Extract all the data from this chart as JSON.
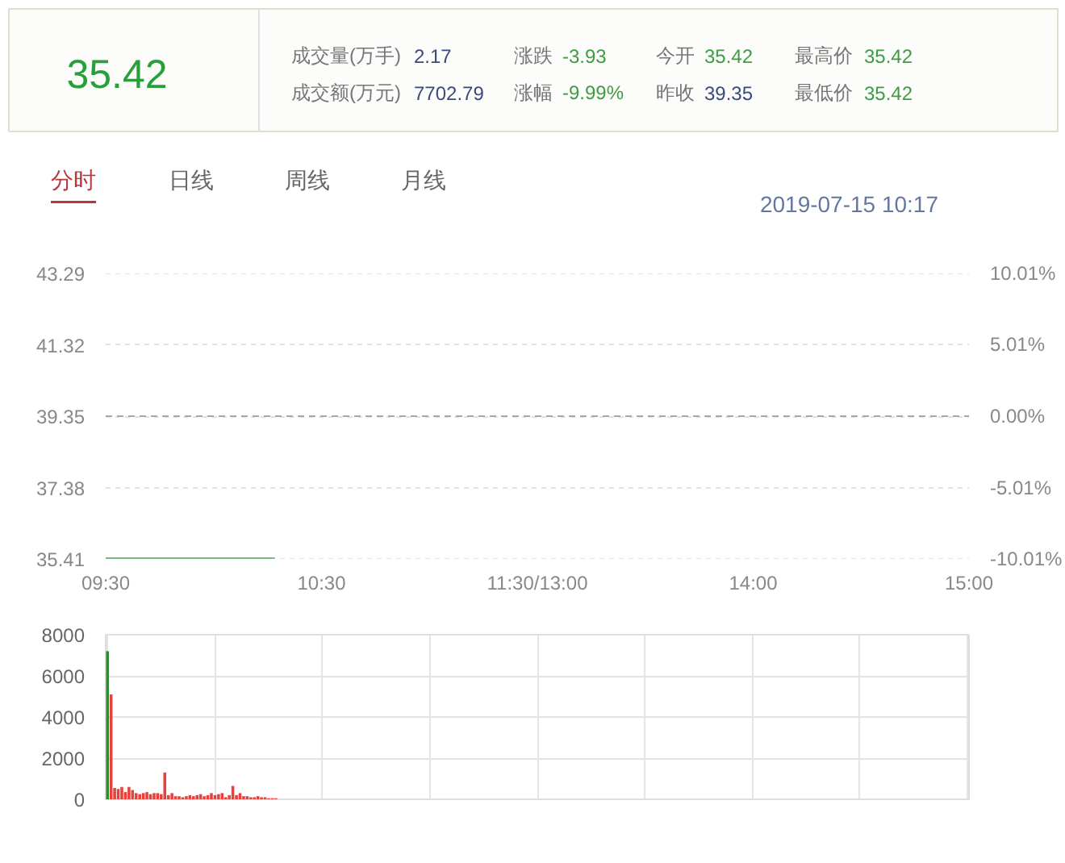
{
  "chart_data": [
    {
      "type": "other",
      "title": "35.42",
      "color": "#28a03a",
      "categories": [
        "成交量(万手)",
        "涨跌",
        "今开",
        "最高价",
        "成交额(万元)",
        "涨幅",
        "昨收",
        "最低价"
      ],
      "values": [
        2.17,
        -3.93,
        35.42,
        35.42,
        7702.79,
        -9.99,
        39.35,
        35.42
      ],
      "value_labels": [
        "2.17",
        "-3.93",
        "35.42",
        "35.42",
        "7702.79",
        "-9.99%",
        "39.35",
        "35.42"
      ],
      "colors": [
        "#3b4a7c",
        "#3f9b45",
        "#3f9b45",
        "#3f9b45",
        "#3b4a7c",
        "#3f9b45",
        "#3b4a7c",
        "#3f9b45"
      ]
    },
    {
      "type": "line",
      "subtitle": "2019-07-15 10:17",
      "annotations": [
        "分时",
        "日线",
        "周线",
        "月线"
      ],
      "categories": [
        "09:30",
        null,
        null,
        null,
        null,
        null,
        null,
        null,
        null,
        null,
        null,
        null,
        null,
        null,
        null,
        null,
        null,
        null,
        null,
        null,
        null,
        null,
        null,
        null,
        null,
        null,
        null,
        null,
        null,
        null,
        null,
        null,
        null,
        null,
        null,
        null,
        null,
        null,
        null,
        null,
        null,
        null,
        null,
        null,
        null,
        null,
        null,
        null,
        null,
        null,
        null,
        null,
        null,
        null,
        null,
        null,
        null,
        null,
        null,
        null,
        "10:30",
        null,
        null,
        null,
        null,
        null,
        null,
        null,
        null,
        null,
        null,
        null,
        null,
        null,
        null,
        null,
        null,
        null,
        null,
        null,
        null,
        null,
        null,
        null,
        null,
        null,
        null,
        null,
        null,
        null,
        null,
        null,
        null,
        null,
        null,
        null,
        null,
        null,
        null,
        null,
        null,
        null,
        null,
        null,
        null,
        null,
        null,
        null,
        null,
        null,
        null,
        null,
        null,
        null,
        null,
        null,
        null,
        null,
        null,
        null,
        "11:30/13:00",
        null,
        null,
        null,
        null,
        null,
        null,
        null,
        null,
        null,
        null,
        null,
        null,
        null,
        null,
        null,
        null,
        null,
        null,
        null,
        null,
        null,
        null,
        null,
        null,
        null,
        null,
        null,
        null,
        null,
        null,
        null,
        null,
        null,
        null,
        null,
        null,
        null,
        null,
        null,
        null,
        null,
        null,
        null,
        null,
        null,
        null,
        null,
        null,
        null,
        null,
        null,
        null,
        null,
        null,
        null,
        null,
        null,
        null,
        null,
        "14:00",
        null,
        null,
        null,
        null,
        null,
        null,
        null,
        null,
        null,
        null,
        null,
        null,
        null,
        null,
        null,
        null,
        null,
        null,
        null,
        null,
        null,
        null,
        null,
        null,
        null,
        null,
        null,
        null,
        null,
        null,
        null,
        null,
        null,
        null,
        null,
        null,
        null,
        null,
        null,
        null,
        null,
        null,
        null,
        null,
        null,
        null,
        null,
        null,
        null,
        null,
        null,
        null,
        null,
        null,
        null,
        null,
        null,
        null,
        null,
        "15:00"
      ],
      "series": [
        {
          "color": "#76b97a",
          "values": [
            35.42,
            35.42,
            35.42,
            35.42,
            35.42,
            35.42,
            35.42,
            35.42,
            35.42,
            35.42,
            35.42,
            35.42,
            35.42,
            35.42,
            35.42,
            35.42,
            35.42,
            35.42,
            35.42,
            35.42,
            35.42,
            35.42,
            35.42,
            35.42,
            35.42,
            35.42,
            35.42,
            35.42,
            35.42,
            35.42,
            35.42,
            35.42,
            35.42,
            35.42,
            35.42,
            35.42,
            35.42,
            35.42,
            35.42,
            35.42,
            35.42,
            35.42,
            35.42,
            35.42,
            35.42,
            35.42,
            35.42,
            35.42,
            null,
            null,
            null,
            null,
            null,
            null,
            null,
            null,
            null,
            null,
            null,
            null,
            null,
            null,
            null,
            null,
            null,
            null,
            null,
            null,
            null,
            null,
            null,
            null,
            null,
            null,
            null,
            null,
            null,
            null,
            null,
            null,
            null,
            null,
            null,
            null,
            null,
            null,
            null,
            null,
            null,
            null,
            null,
            null,
            null,
            null,
            null,
            null,
            null,
            null,
            null,
            null,
            null,
            null,
            null,
            null,
            null,
            null,
            null,
            null,
            null,
            null,
            null,
            null,
            null,
            null,
            null,
            null,
            null,
            null,
            null,
            null,
            null,
            null,
            null,
            null,
            null,
            null,
            null,
            null,
            null,
            null,
            null,
            null,
            null,
            null,
            null,
            null,
            null,
            null,
            null,
            null,
            null,
            null,
            null,
            null,
            null,
            null,
            null,
            null,
            null,
            null,
            null,
            null,
            null,
            null,
            null,
            null,
            null,
            null,
            null,
            null,
            null,
            null,
            null,
            null,
            null,
            null,
            null,
            null,
            null,
            null,
            null,
            null,
            null,
            null,
            null,
            null,
            null,
            null,
            null,
            null,
            null,
            null,
            null,
            null,
            null,
            null,
            null,
            null,
            null,
            null,
            null,
            null,
            null,
            null,
            null,
            null,
            null,
            null,
            null,
            null,
            null,
            null,
            null,
            null,
            null,
            null,
            null,
            null,
            null,
            null,
            null,
            null,
            null,
            null,
            null,
            null,
            null,
            null,
            null,
            null,
            null,
            null,
            null,
            null,
            null,
            null,
            null,
            null,
            null,
            null,
            null,
            null,
            null,
            null,
            null,
            null,
            null,
            null,
            null,
            null,
            null
          ]
        }
      ],
      "ylim": [
        35.41,
        43.29
      ],
      "yticks": [
        35.41,
        37.38,
        39.35,
        41.32,
        43.29
      ],
      "y2lim": [
        -10.01,
        10.01
      ],
      "y2ticks": [
        {
          "value": -10.01,
          "label": "-10.01%"
        },
        {
          "value": -5.01,
          "label": "-5.01%"
        },
        {
          "value": 0,
          "label": "0.00%"
        },
        {
          "value": 5.01,
          "label": "5.01%"
        },
        {
          "value": 10.01,
          "label": "10.01%"
        }
      ],
      "grid": "y",
      "ref_lines": [
        {
          "axis": "y",
          "value": 39.35,
          "color": "#a8a8a8",
          "line_style": "dashed"
        }
      ]
    },
    {
      "type": "bar",
      "categories": [
        null,
        null,
        null,
        null,
        null,
        null,
        null,
        null,
        null,
        null,
        null,
        null,
        null,
        null,
        null,
        null,
        null,
        null,
        null,
        null,
        null,
        null,
        null,
        null,
        null,
        null,
        null,
        null,
        null,
        null,
        null,
        null,
        null,
        null,
        null,
        null,
        null,
        null,
        null,
        null,
        null,
        null,
        null,
        null,
        null,
        null,
        null,
        null,
        null,
        null,
        null,
        null,
        null,
        null,
        null,
        null,
        null,
        null,
        null,
        null,
        null,
        null,
        null,
        null,
        null,
        null,
        null,
        null,
        null,
        null,
        null,
        null,
        null,
        null,
        null,
        null,
        null,
        null,
        null,
        null,
        null,
        null,
        null,
        null,
        null,
        null,
        null,
        null,
        null,
        null,
        null,
        null,
        null,
        null,
        null,
        null,
        null,
        null,
        null,
        null,
        null,
        null,
        null,
        null,
        null,
        null,
        null,
        null,
        null,
        null,
        null,
        null,
        null,
        null,
        null,
        null,
        null,
        null,
        null,
        null,
        null,
        null,
        null,
        null,
        null,
        null,
        null,
        null,
        null,
        null,
        null,
        null,
        null,
        null,
        null,
        null,
        null,
        null,
        null,
        null,
        null,
        null,
        null,
        null,
        null,
        null,
        null,
        null,
        null,
        null,
        null,
        null,
        null,
        null,
        null,
        null,
        null,
        null,
        null,
        null,
        null,
        null,
        null,
        null,
        null,
        null,
        null,
        null,
        null,
        null,
        null,
        null,
        null,
        null,
        null,
        null,
        null,
        null,
        null,
        null,
        null,
        null,
        null,
        null,
        null,
        null,
        null,
        null,
        null,
        null,
        null,
        null,
        null,
        null,
        null,
        null,
        null,
        null,
        null,
        null,
        null,
        null,
        null,
        null,
        null,
        null,
        null,
        null,
        null,
        null,
        null,
        null,
        null,
        null,
        null,
        null,
        null,
        null,
        null,
        null,
        null,
        null,
        null,
        null,
        null,
        null,
        null,
        null,
        null,
        null,
        null,
        null,
        null,
        null,
        null,
        null,
        null,
        null,
        null,
        null,
        null
      ],
      "values": [
        7200,
        5100,
        550,
        500,
        600,
        350,
        600,
        450,
        300,
        250,
        300,
        350,
        250,
        300,
        300,
        250,
        1300,
        200,
        300,
        150,
        150,
        100,
        150,
        200,
        150,
        200,
        250,
        150,
        200,
        300,
        200,
        250,
        300,
        100,
        200,
        650,
        200,
        300,
        150,
        150,
        100,
        100,
        150,
        100,
        100,
        50,
        50,
        50,
        null,
        null,
        null,
        null,
        null,
        null,
        null,
        null,
        null,
        null,
        null,
        null,
        null,
        null,
        null,
        null,
        null,
        null,
        null,
        null,
        null,
        null,
        null,
        null,
        null,
        null,
        null,
        null,
        null,
        null,
        null,
        null,
        null,
        null,
        null,
        null,
        null,
        null,
        null,
        null,
        null,
        null,
        null,
        null,
        null,
        null,
        null,
        null,
        null,
        null,
        null,
        null,
        null,
        null,
        null,
        null,
        null,
        null,
        null,
        null,
        null,
        null,
        null,
        null,
        null,
        null,
        null,
        null,
        null,
        null,
        null,
        null,
        null,
        null,
        null,
        null,
        null,
        null,
        null,
        null,
        null,
        null,
        null,
        null,
        null,
        null,
        null,
        null,
        null,
        null,
        null,
        null,
        null,
        null,
        null,
        null,
        null,
        null,
        null,
        null,
        null,
        null,
        null,
        null,
        null,
        null,
        null,
        null,
        null,
        null,
        null,
        null,
        null,
        null,
        null,
        null,
        null,
        null,
        null,
        null,
        null,
        null,
        null,
        null,
        null,
        null,
        null,
        null,
        null,
        null,
        null,
        null,
        null,
        null,
        null,
        null,
        null,
        null,
        null,
        null,
        null,
        null,
        null,
        null,
        null,
        null,
        null,
        null,
        null,
        null,
        null,
        null,
        null,
        null,
        null,
        null,
        null,
        null,
        null,
        null,
        null,
        null,
        null,
        null,
        null,
        null,
        null,
        null,
        null,
        null,
        null,
        null,
        null,
        null,
        null,
        null,
        null,
        null,
        null,
        null,
        null,
        null,
        null,
        null,
        null,
        null,
        null,
        null,
        null,
        null,
        null,
        null,
        null
      ],
      "colors": [
        "#2e8b32",
        "#e8403b",
        "#e8403b",
        "#e8403b",
        "#e8403b",
        "#e8403b",
        "#e8403b",
        "#e8403b",
        "#e8403b",
        "#e8403b",
        "#e8403b",
        "#e8403b",
        "#e8403b",
        "#e8403b",
        "#e8403b",
        "#e8403b",
        "#e8403b",
        "#e8403b",
        "#e8403b",
        "#e8403b",
        "#e8403b",
        "#e8403b",
        "#e8403b",
        "#e8403b",
        "#e8403b",
        "#e8403b",
        "#e8403b",
        "#e8403b",
        "#e8403b",
        "#e8403b",
        "#e8403b",
        "#e8403b",
        "#e8403b",
        "#e8403b",
        "#e8403b",
        "#e8403b",
        "#e8403b",
        "#e8403b",
        "#e8403b",
        "#e8403b",
        "#e8403b",
        "#e8403b",
        "#e8403b",
        "#e8403b",
        "#e8403b",
        "#e8403b",
        "#e8403b",
        "#e8403b",
        null,
        null,
        null,
        null,
        null,
        null,
        null,
        null,
        null,
        null,
        null,
        null,
        null,
        null,
        null,
        null,
        null,
        null,
        null,
        null,
        null,
        null,
        null,
        null,
        null,
        null,
        null,
        null,
        null,
        null,
        null,
        null,
        null,
        null,
        null,
        null,
        null,
        null,
        null,
        null,
        null,
        null,
        null,
        null,
        null,
        null,
        null,
        null,
        null,
        null,
        null,
        null,
        null,
        null,
        null,
        null,
        null,
        null,
        null,
        null,
        null,
        null,
        null,
        null,
        null,
        null,
        null,
        null,
        null,
        null,
        null,
        null,
        null,
        null,
        null,
        null,
        null,
        null,
        null,
        null,
        null,
        null,
        null,
        null,
        null,
        null,
        null,
        null,
        null,
        null,
        null,
        null,
        null,
        null,
        null,
        null,
        null,
        null,
        null,
        null,
        null,
        null,
        null,
        null,
        null,
        null,
        null,
        null,
        null,
        null,
        null,
        null,
        null,
        null,
        null,
        null,
        null,
        null,
        null,
        null,
        null,
        null,
        null,
        null,
        null,
        null,
        null,
        null,
        null,
        null,
        null,
        null,
        null,
        null,
        null,
        null,
        null,
        null,
        null,
        null,
        null,
        null,
        null,
        null,
        null,
        null,
        null,
        null,
        null,
        null,
        null,
        null,
        null,
        null,
        null,
        null,
        null,
        null,
        null,
        null,
        null,
        null,
        null,
        null,
        null,
        null,
        null,
        null,
        null,
        null,
        null,
        null,
        null,
        null,
        null,
        null,
        null,
        null,
        null,
        null,
        null,
        null,
        null,
        null,
        null,
        null,
        null,
        null,
        null,
        null,
        null,
        null,
        null
      ],
      "ylim": [
        0,
        8000
      ],
      "yticks": [
        0,
        2000,
        4000,
        6000,
        8000
      ],
      "grid": true,
      "tick_labels": "y"
    }
  ]
}
